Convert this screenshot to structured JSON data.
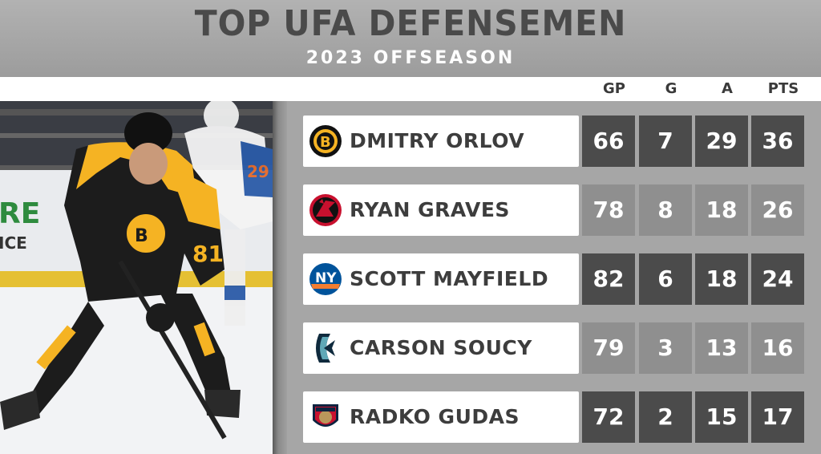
{
  "header": {
    "title": "TOP UFA DEFENSEMEN",
    "subtitle": "2023 OFFSEASON"
  },
  "columns": [
    "GP",
    "G",
    "A",
    "PTS"
  ],
  "photo": {
    "jersey_number": "81",
    "board_text": "RE",
    "board_text2": "ICE"
  },
  "players": [
    {
      "name": "DMITRY ORLOV",
      "team_icon": "bruins-logo-icon",
      "gp": "66",
      "g": "7",
      "a": "29",
      "pts": "36"
    },
    {
      "name": "RYAN GRAVES",
      "team_icon": "devils-logo-icon",
      "gp": "78",
      "g": "8",
      "a": "18",
      "pts": "26"
    },
    {
      "name": "SCOTT MAYFIELD",
      "team_icon": "islanders-logo-icon",
      "gp": "82",
      "g": "6",
      "a": "18",
      "pts": "24"
    },
    {
      "name": "CARSON SOUCY",
      "team_icon": "kraken-logo-icon",
      "gp": "79",
      "g": "3",
      "a": "13",
      "pts": "16"
    },
    {
      "name": "RADKO GUDAS",
      "team_icon": "panthers-logo-icon",
      "gp": "72",
      "g": "2",
      "a": "15",
      "pts": "17"
    }
  ],
  "colors": {
    "dark_stat": "#4b4b4b",
    "light_stat": "#8f8f8f",
    "bruins_gold": "#f5b323",
    "devils_red": "#c8102e",
    "islanders_blue": "#00539b",
    "islanders_orange": "#f47d30",
    "kraken_teal": "#5fa8b7",
    "panthers_red": "#c8102e"
  }
}
